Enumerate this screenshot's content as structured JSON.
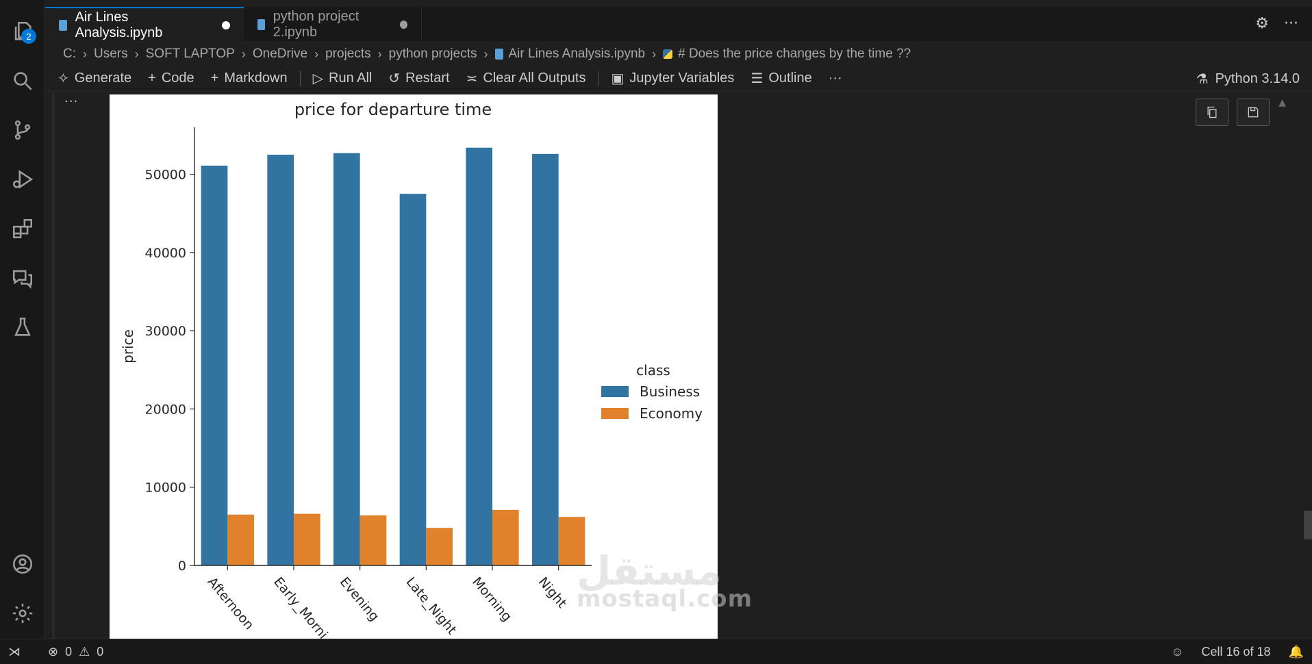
{
  "activity_bar": {
    "explorer_badge": "2",
    "icons": [
      "files-icon",
      "search-icon",
      "source-control-icon",
      "run-debug-icon",
      "extensions-icon",
      "chat-icon",
      "testing-icon",
      "account-icon",
      "settings-icon"
    ]
  },
  "tabs": [
    {
      "label": "Air Lines Analysis.ipynb",
      "active": true
    },
    {
      "label": "python project 2.ipynb",
      "active": false
    }
  ],
  "breadcrumb": {
    "items": [
      "C:",
      "Users",
      "SOFT LAPTOP",
      "OneDrive",
      "projects",
      "python projects",
      "Air Lines Analysis.ipynb",
      "# Does the price changes by the time ??"
    ]
  },
  "toolbar": {
    "generate": "Generate",
    "code": "Code",
    "markdown": "Markdown",
    "run_all": "Run All",
    "restart": "Restart",
    "clear_outputs": "Clear All Outputs",
    "variables": "Jupyter Variables",
    "outline": "Outline",
    "more": "···",
    "kernel": "Python 3.14.0"
  },
  "cell": {
    "more": "···"
  },
  "chart_data": {
    "type": "bar",
    "title": "price for departure time",
    "xlabel": "",
    "ylabel": "price",
    "ylim": [
      0,
      56000
    ],
    "yticks": [
      0,
      10000,
      20000,
      30000,
      40000,
      50000
    ],
    "categories": [
      "Afternoon",
      "Early_Morning",
      "Evening",
      "Late_Night",
      "Morning",
      "Night"
    ],
    "category_labels_shown": [
      "Afternoon",
      "Early_Morni",
      "Evening",
      "Late_Night",
      "Morning",
      "Night"
    ],
    "legend_title": "class",
    "legend_placement": "center-right",
    "series": [
      {
        "name": "Business",
        "color": "#3274a1",
        "values": [
          51100,
          52500,
          52700,
          47500,
          53400,
          52600
        ]
      },
      {
        "name": "Economy",
        "color": "#e1812c",
        "values": [
          6500,
          6600,
          6400,
          4800,
          7100,
          6200
        ]
      }
    ]
  },
  "statusbar": {
    "errors": "0",
    "warnings": "0",
    "cell_position": "Cell 16 of 18"
  },
  "watermark": {
    "arabic": "مستقل",
    "latin": "mostaql.com"
  }
}
